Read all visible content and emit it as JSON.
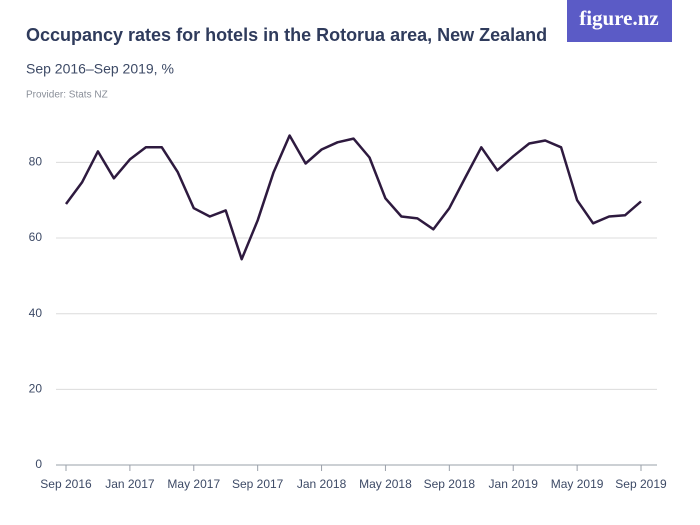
{
  "logo": "figure.nz",
  "chart_data": {
    "type": "line",
    "title": "Occupancy rates for hotels in the Rotorua area, New Zealand",
    "subtitle": "Sep 2016–Sep 2019, %",
    "provider": "Provider: Stats NZ",
    "categories": [
      "Sep 2016",
      null,
      null,
      null,
      "Jan 2017",
      null,
      null,
      null,
      "May 2017",
      null,
      null,
      null,
      "Sep 2017",
      null,
      null,
      null,
      "Jan 2018",
      null,
      null,
      null,
      "May 2018",
      null,
      null,
      null,
      "Sep 2018",
      null,
      null,
      null,
      "Jan 2019",
      null,
      null,
      null,
      "May 2019",
      null,
      null,
      null,
      "Sep 2019"
    ],
    "values": [
      69,
      74.7,
      82.9,
      75.8,
      80.8,
      84,
      84,
      77.4,
      67.9,
      65.7,
      67.3,
      54.4,
      64.7,
      77.4,
      87.1,
      79.7,
      83.4,
      85.3,
      86.3,
      81.3,
      70.5,
      65.7,
      65.2,
      62.3,
      67.9,
      76,
      84,
      77.9,
      81.6,
      85,
      85.8,
      84,
      70,
      63.9,
      65.7,
      66,
      69.7
    ],
    "color": "#2e1a3f",
    "ylim": [
      0,
      92
    ],
    "yticks": [
      0,
      20,
      40,
      60,
      80
    ],
    "grid": true
  }
}
